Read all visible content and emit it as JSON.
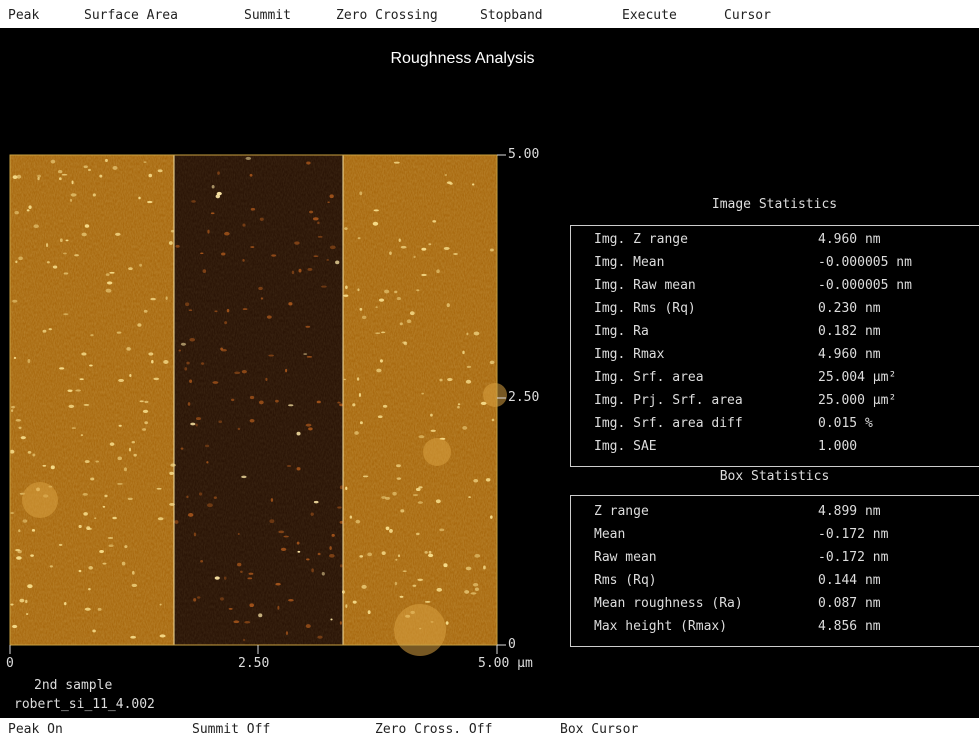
{
  "menu": [
    "Peak",
    "Surface Area",
    "Summit",
    "Zero Crossing",
    "Stopband",
    "Execute",
    "Cursor"
  ],
  "title": "Roughness Analysis",
  "image": {
    "y_labels": [
      "5.00",
      "2.50",
      "0"
    ],
    "x_labels": [
      "0",
      "2.50",
      "5.00 µm"
    ],
    "sample": [
      "2nd sample",
      "robert_si_11_4.002"
    ]
  },
  "image_statistics": {
    "heading": "Image Statistics",
    "rows": [
      [
        "Img. Z range",
        "4.960 nm"
      ],
      [
        "Img. Mean",
        "-0.000005 nm"
      ],
      [
        "Img. Raw mean",
        "-0.000005 nm"
      ],
      [
        "Img. Rms (Rq)",
        "0.230 nm"
      ],
      [
        "Img. Ra",
        "0.182 nm"
      ],
      [
        "Img. Rmax",
        "4.960 nm"
      ],
      [
        "Img. Srf. area",
        "25.004 µm²"
      ],
      [
        "Img. Prj. Srf. area",
        "25.000 µm²"
      ],
      [
        "Img. Srf. area diff",
        "0.015 %"
      ],
      [
        "Img. SAE",
        "1.000"
      ]
    ]
  },
  "box_statistics": {
    "heading": "Box Statistics",
    "rows": [
      [
        "Z range",
        "4.899 nm"
      ],
      [
        "Mean",
        "-0.172 nm"
      ],
      [
        "Raw mean",
        "-0.172 nm"
      ],
      [
        "Rms (Rq)",
        "0.144 nm"
      ],
      [
        "Mean roughness (Ra)",
        "0.087 nm"
      ],
      [
        "Max height (Rmax)",
        "4.856 nm"
      ]
    ]
  },
  "status": [
    "Peak On",
    "Summit Off",
    "Zero Cross. Off",
    "Box Cursor"
  ]
}
